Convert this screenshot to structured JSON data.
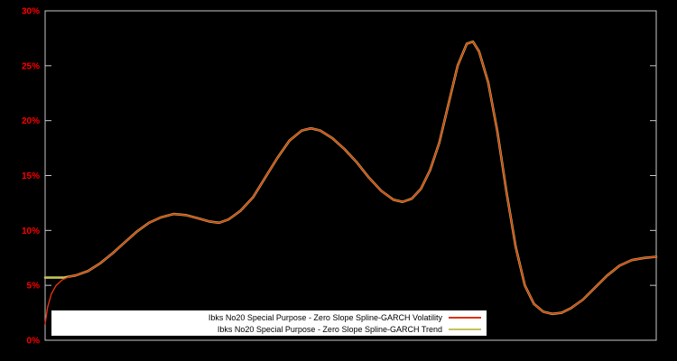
{
  "colors": {
    "background": "#000000",
    "plot_border": "#c8c8c8",
    "tick_label": "#ff0000",
    "legend_bg": "#ffffff",
    "legend_text": "#000000"
  },
  "chart_data": {
    "type": "line",
    "title": "",
    "xlabel": "",
    "ylabel": "",
    "ylim": [
      0,
      30
    ],
    "ytick_values": [
      0,
      5,
      10,
      15,
      20,
      25,
      30
    ],
    "ytick_labels": [
      "0%",
      "5%",
      "10%",
      "15%",
      "20%",
      "25%",
      "30%"
    ],
    "xtick_labels": [],
    "grid": false,
    "legend_position": "bottom-inside",
    "series": [
      {
        "name": "Ibks No20 Special Purpose - Zero Slope Spline-GARCH Volatility",
        "color": "#dd3311",
        "width": 1.4,
        "x": [
          0.0,
          0.004,
          0.01,
          0.018,
          0.028,
          0.04,
          0.05,
          0.07,
          0.09,
          0.11,
          0.13,
          0.15,
          0.17,
          0.19,
          0.21,
          0.23,
          0.25,
          0.27,
          0.285,
          0.3,
          0.32,
          0.34,
          0.36,
          0.38,
          0.4,
          0.42,
          0.435,
          0.45,
          0.47,
          0.49,
          0.51,
          0.53,
          0.55,
          0.57,
          0.585,
          0.6,
          0.615,
          0.63,
          0.645,
          0.66,
          0.675,
          0.69,
          0.7,
          0.71,
          0.725,
          0.74,
          0.755,
          0.77,
          0.785,
          0.8,
          0.815,
          0.83,
          0.845,
          0.86,
          0.88,
          0.9,
          0.92,
          0.94,
          0.96,
          0.98,
          1.0
        ],
        "y": [
          1.5,
          3.0,
          4.2,
          5.0,
          5.5,
          5.8,
          5.9,
          6.3,
          7.0,
          7.9,
          8.9,
          9.9,
          10.7,
          11.2,
          11.5,
          11.4,
          11.1,
          10.8,
          10.7,
          11.0,
          11.8,
          13.0,
          14.8,
          16.6,
          18.2,
          19.1,
          19.3,
          19.1,
          18.4,
          17.4,
          16.2,
          14.8,
          13.6,
          12.8,
          12.6,
          12.9,
          13.8,
          15.5,
          18.0,
          21.5,
          25.0,
          27.0,
          27.2,
          26.3,
          23.5,
          19.0,
          13.5,
          8.5,
          5.0,
          3.3,
          2.6,
          2.4,
          2.5,
          2.9,
          3.7,
          4.8,
          5.9,
          6.8,
          7.3,
          7.5,
          7.6
        ]
      },
      {
        "name": "Ibks No20 Special Purpose - Zero Slope Spline-GARCH Trend",
        "color": "#c2c25a",
        "width": 2.6,
        "x": [
          0.0,
          0.01,
          0.02,
          0.03,
          0.04,
          0.05,
          0.07,
          0.09,
          0.11,
          0.13,
          0.15,
          0.17,
          0.19,
          0.21,
          0.23,
          0.25,
          0.27,
          0.285,
          0.3,
          0.32,
          0.34,
          0.36,
          0.38,
          0.4,
          0.42,
          0.435,
          0.45,
          0.47,
          0.49,
          0.51,
          0.53,
          0.55,
          0.57,
          0.585,
          0.6,
          0.615,
          0.63,
          0.645,
          0.66,
          0.675,
          0.69,
          0.7,
          0.71,
          0.725,
          0.74,
          0.755,
          0.77,
          0.785,
          0.8,
          0.815,
          0.83,
          0.845,
          0.86,
          0.88,
          0.9,
          0.92,
          0.94,
          0.96,
          0.98,
          1.0
        ],
        "y": [
          5.7,
          5.7,
          5.7,
          5.7,
          5.8,
          5.9,
          6.3,
          7.0,
          7.9,
          8.9,
          9.9,
          10.7,
          11.2,
          11.5,
          11.4,
          11.1,
          10.8,
          10.7,
          11.0,
          11.8,
          13.0,
          14.8,
          16.6,
          18.2,
          19.1,
          19.3,
          19.1,
          18.4,
          17.4,
          16.2,
          14.8,
          13.6,
          12.8,
          12.6,
          12.9,
          13.8,
          15.5,
          18.0,
          21.5,
          25.0,
          27.0,
          27.2,
          26.3,
          23.5,
          19.0,
          13.5,
          8.5,
          5.0,
          3.3,
          2.6,
          2.4,
          2.5,
          2.9,
          3.7,
          4.8,
          5.9,
          6.8,
          7.3,
          7.5,
          7.6
        ]
      }
    ]
  }
}
